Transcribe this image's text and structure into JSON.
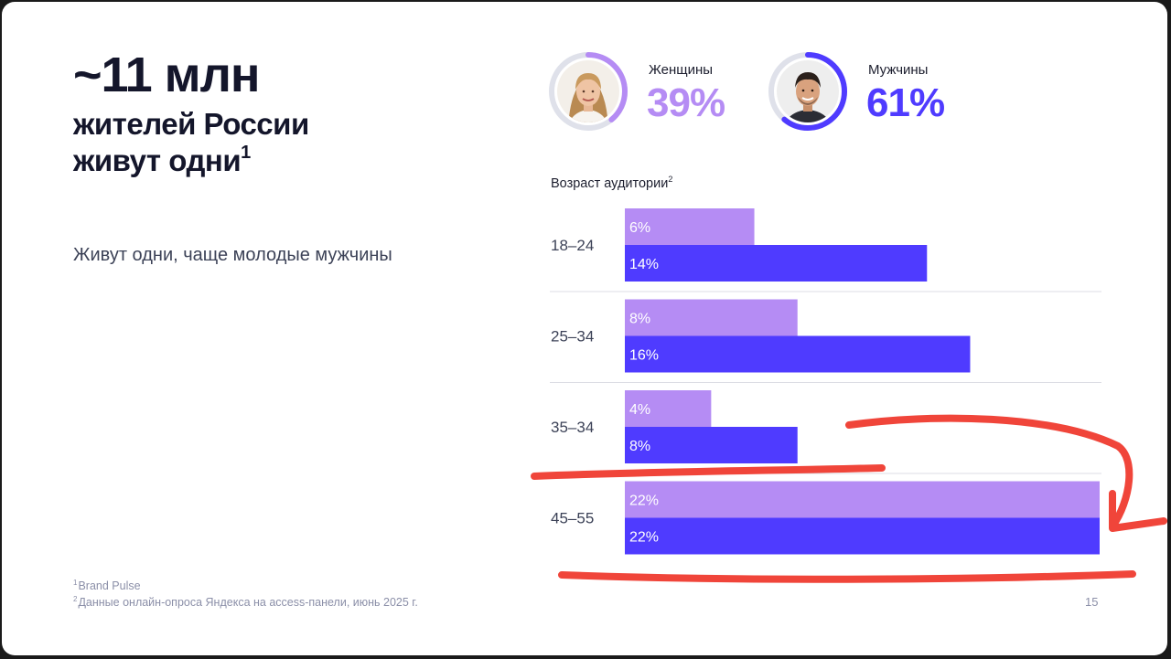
{
  "headline": {
    "big": "~11 млн",
    "line1": "жителей России",
    "line2": "живут одни",
    "sup": "1"
  },
  "tagline": "Живут одни, чаще молодые мужчины",
  "gender": {
    "female": {
      "label": "Женщины",
      "value": "39%",
      "share": 0.39,
      "color": "#b58cf4",
      "icon": "woman-avatar"
    },
    "male": {
      "label": "Мужчины",
      "value": "61%",
      "share": 0.61,
      "color": "#4f3bff",
      "icon": "man-avatar"
    }
  },
  "chart_title": "Возраст аудитории",
  "chart_title_sup": "2",
  "chart_data": {
    "type": "bar",
    "orientation": "horizontal",
    "title": "Возраст аудитории",
    "categories": [
      "18–24",
      "25–34",
      "35–34",
      "45–55"
    ],
    "series": [
      {
        "name": "Женщины",
        "color": "#b58cf4",
        "values": [
          6,
          8,
          4,
          22
        ],
        "labels": [
          "6%",
          "8%",
          "4%",
          "22%"
        ]
      },
      {
        "name": "Мужчины",
        "color": "#4f3bff",
        "values": [
          14,
          16,
          8,
          22
        ],
        "labels": [
          "14%",
          "16%",
          "8%",
          "22%"
        ]
      }
    ],
    "xlim": [
      0,
      22
    ],
    "grid": false,
    "separators": true
  },
  "footnotes": [
    {
      "sup": "1",
      "text": "Brand Pulse"
    },
    {
      "sup": "2",
      "text": "Данные онлайн-опроса Яндекса на access-панели, июнь 2025 г."
    }
  ],
  "page_number": "15",
  "annotation_color": "#f0453a"
}
